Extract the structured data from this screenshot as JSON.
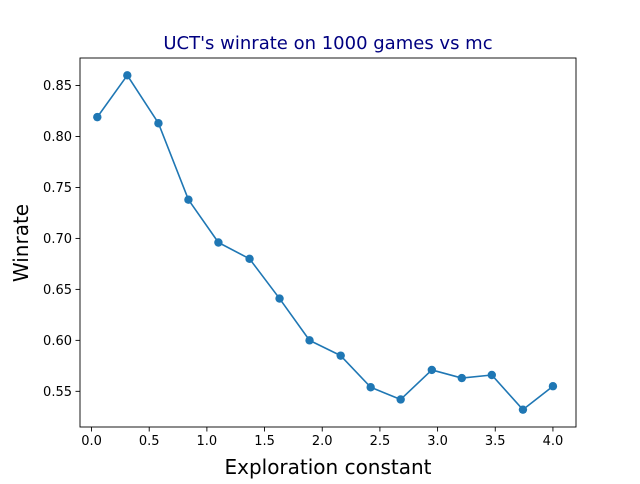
{
  "chart_data": {
    "type": "line",
    "title": "UCT's winrate on 1000 games vs mc",
    "xlabel": "Exploration constant",
    "ylabel": "Winrate",
    "xlim": [
      -0.1,
      4.2
    ],
    "ylim": [
      0.515,
      0.877
    ],
    "x_ticks": [
      0.0,
      0.5,
      1.0,
      1.5,
      2.0,
      2.5,
      3.0,
      3.5,
      4.0
    ],
    "x_tick_labels": [
      "0.0",
      "0.5",
      "1.0",
      "1.5",
      "2.0",
      "2.5",
      "3.0",
      "3.5",
      "4.0"
    ],
    "y_ticks": [
      0.55,
      0.6,
      0.65,
      0.7,
      0.75,
      0.8,
      0.85
    ],
    "y_tick_labels": [
      "0.55",
      "0.60",
      "0.65",
      "0.70",
      "0.75",
      "0.80",
      "0.85"
    ],
    "grid": false,
    "legend": "none",
    "series": [
      {
        "color": "#1f77b4",
        "marker": "circle",
        "points": [
          {
            "x": 0.05,
            "y": 0.819
          },
          {
            "x": 0.31,
            "y": 0.86
          },
          {
            "x": 0.58,
            "y": 0.813
          },
          {
            "x": 0.84,
            "y": 0.738
          },
          {
            "x": 1.1,
            "y": 0.696
          },
          {
            "x": 1.37,
            "y": 0.68
          },
          {
            "x": 1.63,
            "y": 0.641
          },
          {
            "x": 1.89,
            "y": 0.6
          },
          {
            "x": 2.16,
            "y": 0.585
          },
          {
            "x": 2.42,
            "y": 0.554
          },
          {
            "x": 2.68,
            "y": 0.542
          },
          {
            "x": 2.95,
            "y": 0.571
          },
          {
            "x": 3.21,
            "y": 0.563
          },
          {
            "x": 3.47,
            "y": 0.566
          },
          {
            "x": 3.74,
            "y": 0.532
          },
          {
            "x": 4.0,
            "y": 0.555
          }
        ]
      }
    ],
    "title_color": "#000080"
  }
}
